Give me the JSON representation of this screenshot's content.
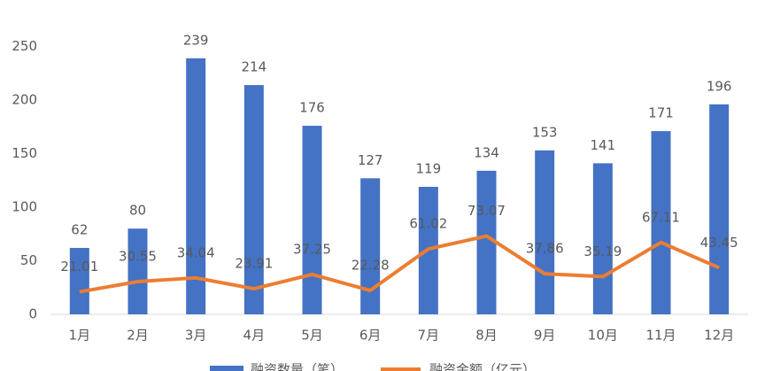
{
  "chart_data": {
    "type": "bar_line",
    "categories": [
      "1月",
      "2月",
      "3月",
      "4月",
      "5月",
      "6月",
      "7月",
      "8月",
      "9月",
      "10月",
      "11月",
      "12月"
    ],
    "series": [
      {
        "name": "融资数量（笔）",
        "type": "bar",
        "color": "#4472c4",
        "values": [
          62,
          80,
          239,
          214,
          176,
          127,
          119,
          134,
          153,
          141,
          171,
          196
        ]
      },
      {
        "name": "融资金额（亿元）",
        "type": "line",
        "color": "#ed7d31",
        "values": [
          21.01,
          30.55,
          34.04,
          23.91,
          37.25,
          22.28,
          61.02,
          73.07,
          37.86,
          35.19,
          67.11,
          43.45
        ]
      }
    ],
    "ylim": [
      0,
      300
    ],
    "yticks": [
      0,
      50,
      100,
      150,
      200,
      250
    ]
  }
}
